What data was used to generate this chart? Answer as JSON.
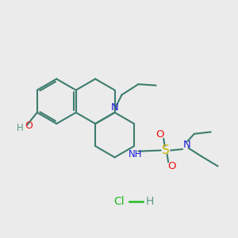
{
  "bg_color": "#ebebeb",
  "bond_color": "#3d7d6e",
  "N_color": "#2020dd",
  "O_color": "#ee1111",
  "S_color": "#c8b400",
  "HCl_color": "#22bb22",
  "H_color": "#5a9a8a",
  "figsize": [
    3.0,
    3.0
  ],
  "dpi": 100,
  "xlim": [
    0,
    10
  ],
  "ylim": [
    0,
    10
  ]
}
